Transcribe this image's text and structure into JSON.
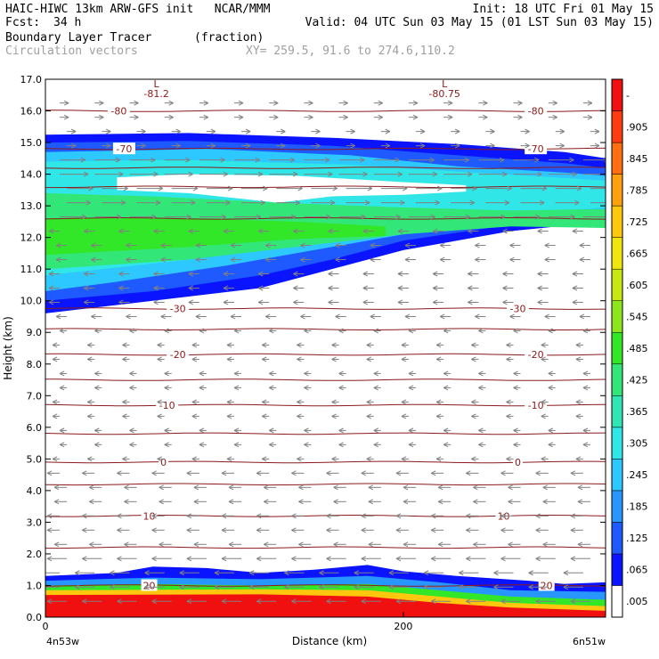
{
  "header": {
    "line1_left": "HAIC-HIWC 13km ARW-GFS init   NCAR/MMM",
    "line1_right": "Init: 18 UTC Fri 01 May 15",
    "fcst_label": "Fcst:",
    "fcst_value": "34 h",
    "valid": "Valid: 04 UTC Sun 03 May 15 (01 LST Sun 03 May 15)",
    "field_name": "Boundary Layer Tracer",
    "field_units": "(fraction)",
    "vector_name": "Circulation vectors",
    "xy_range": "XY= 259.5, 91.6 to 274.6,110.2"
  },
  "colors": {
    "contour": "#8b1a1a",
    "vector": "#808080",
    "background": "#ffffff"
  },
  "chart_data": {
    "type": "heatmap",
    "xlabel": "Distance (km)",
    "ylabel": "Height (km)",
    "xlim": [
      0,
      313
    ],
    "ylim": [
      0,
      17
    ],
    "x_ticks": [
      {
        "value": 0,
        "label": "0"
      },
      {
        "value": 200,
        "label": "200"
      }
    ],
    "x_end_labels": {
      "left": "4n53w",
      "right": "6n51w"
    },
    "y_ticks": [
      "0.0",
      "1.0",
      "2.0",
      "3.0",
      "4.0",
      "5.0",
      "6.0",
      "7.0",
      "8.0",
      "9.0",
      "10.0",
      "11.0",
      "12.0",
      "13.0",
      "14.0",
      "15.0",
      "16.0",
      "17.0"
    ],
    "colorbar": {
      "levels": [
        ".005",
        ".065",
        ".125",
        ".185",
        ".245",
        ".305",
        ".365",
        ".425",
        ".485",
        ".545",
        ".605",
        ".665",
        ".725",
        ".785",
        ".845",
        ".905",
        "-"
      ],
      "colors": [
        "#ffffff",
        "#0a14ff",
        "#1e5aff",
        "#2896ff",
        "#2dc8ff",
        "#30e6e6",
        "#30e6b4",
        "#32e678",
        "#32e628",
        "#8ce61e",
        "#c8e614",
        "#f0e60f",
        "#ffc80f",
        "#ffa00f",
        "#ff6e0f",
        "#ff3c0f",
        "#f01010"
      ]
    },
    "temperature_contours": [
      {
        "level": -80,
        "height": 16.0,
        "labels": [
          {
            "x": 41,
            "text": "-80"
          },
          {
            "x": 274,
            "text": "-80"
          }
        ]
      },
      {
        "level": -70,
        "height": 14.8,
        "labels": [
          {
            "x": 44,
            "text": "-70"
          },
          {
            "x": 274,
            "text": "-70"
          }
        ]
      },
      {
        "level": -60,
        "height": 14.2,
        "labels": []
      },
      {
        "level": -50,
        "height": 13.6,
        "labels": []
      },
      {
        "level": -40,
        "height": 12.6,
        "labels": []
      },
      {
        "level": -30,
        "height": 9.75,
        "labels": [
          {
            "x": 74,
            "text": "-30"
          },
          {
            "x": 264,
            "text": "-30"
          }
        ]
      },
      {
        "level": -25,
        "height": 9.1,
        "labels": []
      },
      {
        "level": -20,
        "height": 8.3,
        "labels": [
          {
            "x": 74,
            "text": "-20"
          },
          {
            "x": 274,
            "text": "-20"
          }
        ]
      },
      {
        "level": -15,
        "height": 7.5,
        "labels": []
      },
      {
        "level": -10,
        "height": 6.7,
        "labels": [
          {
            "x": 68,
            "text": "-10"
          },
          {
            "x": 274,
            "text": "-10"
          }
        ]
      },
      {
        "level": -5,
        "height": 5.8,
        "labels": []
      },
      {
        "level": 0,
        "height": 4.9,
        "labels": [
          {
            "x": 66,
            "text": "0"
          },
          {
            "x": 264,
            "text": "0"
          }
        ]
      },
      {
        "level": 5,
        "height": 4.2,
        "labels": []
      },
      {
        "level": 10,
        "height": 3.2,
        "labels": [
          {
            "x": 58,
            "text": "10"
          },
          {
            "x": 256,
            "text": "10"
          }
        ]
      },
      {
        "level": 15,
        "height": 2.2,
        "labels": []
      },
      {
        "level": 20,
        "height": 1.0,
        "labels": [
          {
            "x": 58,
            "text": "20"
          },
          {
            "x": 280,
            "text": "20"
          }
        ]
      }
    ],
    "lows": [
      {
        "x": 62,
        "height": 16.75,
        "label": "L",
        "value": "-81.2"
      },
      {
        "x": 223,
        "height": 16.75,
        "label": "L",
        "value": "-80.75"
      }
    ]
  }
}
